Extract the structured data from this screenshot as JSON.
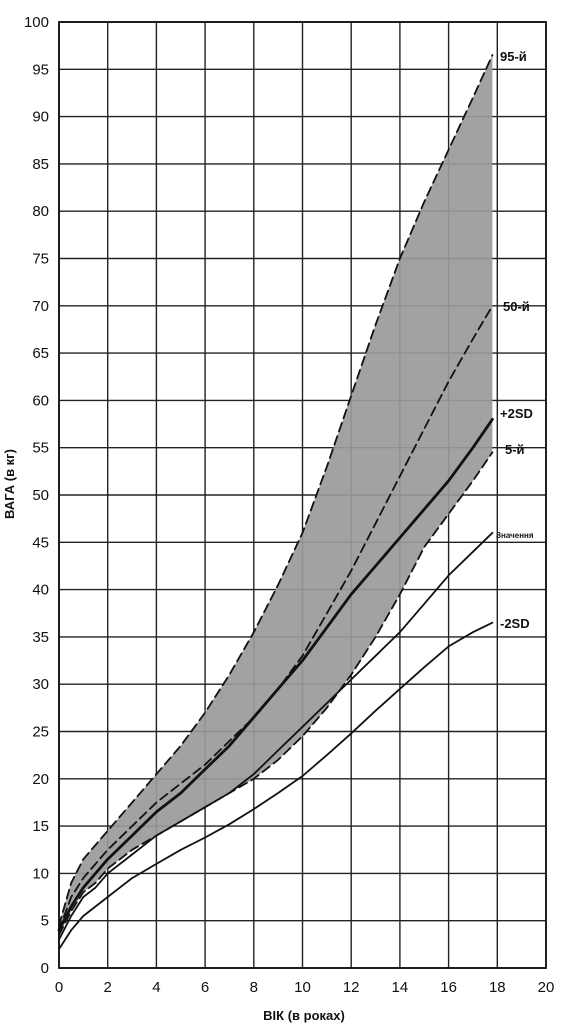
{
  "chart_data": {
    "type": "line",
    "xlabel": "ВІК (в роках)",
    "ylabel": "ВАГА (в кг)",
    "xlim": [
      0,
      20
    ],
    "ylim": [
      0,
      100
    ],
    "xticks": [
      0,
      2,
      4,
      6,
      8,
      10,
      12,
      14,
      16,
      18,
      20
    ],
    "yticks": [
      0,
      5,
      10,
      15,
      20,
      25,
      30,
      35,
      40,
      45,
      50,
      55,
      60,
      65,
      70,
      75,
      80,
      85,
      90,
      95,
      100
    ],
    "grid": true,
    "shaded_band": {
      "between": [
        "95-й",
        "5-й"
      ],
      "color": "#9a9a9a"
    },
    "series": [
      {
        "name": "95-й",
        "style": "dashed",
        "x": [
          0,
          0.5,
          1,
          1.5,
          2,
          3,
          4,
          5,
          6,
          7,
          8,
          9,
          10,
          11,
          12,
          13,
          14,
          15,
          16,
          17,
          17.8
        ],
        "y": [
          4.5,
          9,
          11.5,
          13,
          14.5,
          17.5,
          20.5,
          23.5,
          27,
          31,
          35.5,
          40.5,
          46,
          53,
          60.5,
          68,
          75,
          81,
          86.5,
          92,
          96.5
        ]
      },
      {
        "name": "50-й",
        "style": "dashed",
        "x": [
          0,
          0.5,
          1,
          1.5,
          2,
          3,
          4,
          5,
          6,
          7,
          8,
          9,
          10,
          11,
          12,
          13,
          14,
          15,
          16,
          17,
          17.8
        ],
        "y": [
          4,
          7.5,
          9.5,
          11,
          12.5,
          15,
          17.5,
          19.5,
          21.5,
          24,
          26.5,
          29.5,
          33,
          37.5,
          42,
          47,
          52,
          57,
          62,
          66.5,
          70
        ]
      },
      {
        "name": "+2SD",
        "style": "solid-thick",
        "x": [
          0,
          0.5,
          1,
          1.5,
          2,
          3,
          4,
          5,
          6,
          7,
          8,
          9,
          10,
          11,
          12,
          13,
          14,
          15,
          16,
          17,
          17.8
        ],
        "y": [
          4,
          6.5,
          8.5,
          10,
          11.5,
          14,
          16.5,
          18.5,
          21,
          23.5,
          26.5,
          29.5,
          32.5,
          36,
          39.5,
          42.5,
          45.5,
          48.5,
          51.5,
          55,
          58
        ]
      },
      {
        "name": "5-й",
        "style": "dashed",
        "x": [
          0,
          0.5,
          1,
          1.5,
          2,
          3,
          4,
          5,
          6,
          7,
          8,
          9,
          10,
          11,
          12,
          13,
          14,
          15,
          16,
          17,
          17.8
        ],
        "y": [
          3.5,
          6,
          8,
          9,
          10.5,
          12.5,
          14,
          15.5,
          17,
          18.5,
          20,
          22,
          24.5,
          27.5,
          31,
          35,
          39.5,
          44.5,
          48,
          51.5,
          54.5
        ]
      },
      {
        "name": "Значення",
        "style": "solid",
        "x": [
          0,
          0.5,
          1,
          1.5,
          2,
          3,
          4,
          5,
          6,
          7,
          8,
          9,
          10,
          11,
          12,
          13,
          14,
          15,
          16,
          17,
          17.8
        ],
        "y": [
          3,
          5.5,
          7.5,
          8.5,
          10,
          12,
          14,
          15.5,
          17,
          18.5,
          20.5,
          23,
          25.5,
          28,
          30.5,
          33,
          35.5,
          38.5,
          41.5,
          44,
          46
        ]
      },
      {
        "name": "-2SD",
        "style": "solid",
        "x": [
          0,
          0.5,
          1,
          1.5,
          2,
          3,
          4,
          5,
          6,
          7,
          8,
          9,
          10,
          11,
          12,
          13,
          14,
          15,
          16,
          17,
          17.8
        ],
        "y": [
          2,
          4,
          5.5,
          6.5,
          7.5,
          9.5,
          11,
          12.5,
          13.8,
          15.2,
          16.8,
          18.5,
          20.3,
          22.5,
          24.8,
          27.2,
          29.5,
          31.8,
          34,
          35.5,
          36.5
        ]
      }
    ]
  }
}
